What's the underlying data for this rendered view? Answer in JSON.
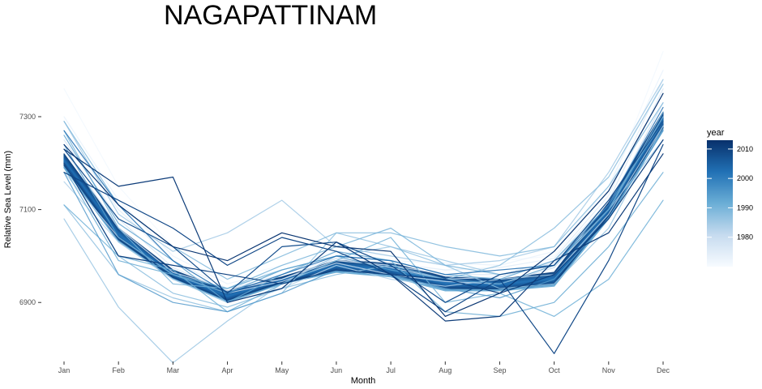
{
  "chart_data": {
    "type": "line",
    "title": "NAGAPATTINAM",
    "xlabel": "Month",
    "ylabel": "Relative Sea Level (mm)",
    "categories": [
      "Jan",
      "Feb",
      "Mar",
      "Apr",
      "May",
      "Jun",
      "Jul",
      "Aug",
      "Sep",
      "Oct",
      "Nov",
      "Dec"
    ],
    "ylim": [
      6780,
      7450
    ],
    "yticks": [
      6900,
      7100,
      7300
    ],
    "legend": {
      "title": "year",
      "position": "right",
      "range": [
        1970,
        2013
      ],
      "ticks": [
        1980,
        1990,
        2000,
        2010
      ],
      "color_low": "#f7fbff",
      "color_high": "#08306b"
    },
    "grid": false,
    "band": {
      "from": 1992,
      "to": 2010,
      "low": [
        7190,
        7030,
        6950,
        6900,
        6940,
        6965,
        6955,
        6925,
        6925,
        6935,
        7080,
        7270
      ],
      "high": [
        7220,
        7060,
        6970,
        6925,
        6955,
        6990,
        6985,
        6955,
        6950,
        6965,
        7115,
        7310
      ]
    },
    "series": [
      {
        "year": 1971,
        "values": [
          7360,
          7150,
          7020,
          6950,
          6980,
          7010,
          7000,
          6980,
          6990,
          7000,
          7140,
          7440
        ]
      },
      {
        "year": 1973,
        "values": [
          7300,
          7120,
          7000,
          6940,
          6970,
          7000,
          6990,
          6985,
          6980,
          7010,
          7150,
          7400
        ]
      },
      {
        "year": 1975,
        "values": [
          7270,
          7100,
          6990,
          6930,
          6960,
          6995,
          6985,
          6970,
          6975,
          6995,
          7130,
          7380
        ]
      },
      {
        "year": 1977,
        "values": [
          7250,
          7080,
          6975,
          6925,
          6950,
          6990,
          6980,
          6960,
          6960,
          6990,
          7120,
          7360
        ]
      },
      {
        "year": 1979,
        "values": [
          7230,
          7060,
          6965,
          6930,
          6950,
          6995,
          6975,
          6950,
          6955,
          6985,
          7110,
          7330
        ]
      },
      {
        "year": 1981,
        "values": [
          7180,
          7040,
          6960,
          6920,
          6945,
          6985,
          6960,
          6945,
          6940,
          6975,
          7100,
          7300
        ]
      },
      {
        "year": 1983,
        "values": [
          7160,
          7030,
          6950,
          6900,
          6930,
          6980,
          6950,
          6935,
          6950,
          6960,
          7090,
          7280
        ]
      },
      {
        "year": 1985,
        "values": [
          7290,
          7090,
          7010,
          7050,
          7120,
          7020,
          7000,
          6980,
          6990,
          7020,
          7180,
          7380
        ]
      },
      {
        "year": 1986,
        "values": [
          7080,
          6890,
          6770,
          6860,
          6940,
          7000,
          7020,
          6990,
          6960,
          6980,
          7100,
          7250
        ]
      },
      {
        "year": 1987,
        "values": [
          7110,
          6960,
          6910,
          6880,
          6920,
          7050,
          7020,
          6980,
          6930,
          6940,
          7060,
          7280
        ]
      },
      {
        "year": 1988,
        "values": [
          7200,
          7000,
          6920,
          6890,
          6930,
          6960,
          6980,
          6950,
          6980,
          7060,
          7170,
          7370
        ]
      },
      {
        "year": 1989,
        "values": [
          7290,
          7110,
          7020,
          6950,
          7000,
          7050,
          7050,
          7020,
          7000,
          7020,
          7150,
          7330
        ]
      },
      {
        "year": 1990,
        "values": [
          7270,
          7060,
          6940,
          6930,
          6980,
          7020,
          7060,
          6980,
          6960,
          6980,
          7100,
          7310
        ]
      },
      {
        "year": 1991,
        "values": [
          7110,
          7000,
          6970,
          6880,
          6940,
          6990,
          7040,
          6900,
          6920,
          6870,
          6950,
          7120
        ]
      },
      {
        "year": 1992,
        "values": [
          7190,
          6990,
          6960,
          6930,
          6970,
          7000,
          6990,
          6880,
          6870,
          6900,
          7020,
          7180
        ]
      },
      {
        "year": 1993,
        "values": [
          7260,
          7070,
          6990,
          6900,
          6960,
          7010,
          6990,
          6960,
          6950,
          6990,
          7110,
          7290
        ]
      },
      {
        "year": 1994,
        "values": [
          7240,
          7040,
          6960,
          6920,
          6970,
          7000,
          6970,
          6950,
          6940,
          6980,
          7100,
          7300
        ]
      },
      {
        "year": 1995,
        "values": [
          7180,
          6960,
          6900,
          6880,
          6920,
          6970,
          6960,
          6930,
          6910,
          6950,
          7080,
          7270
        ]
      },
      {
        "year": 2003,
        "values": [
          7270,
          7110,
          6990,
          6920,
          6960,
          7000,
          6990,
          6960,
          6970,
          6980,
          7110,
          7320
        ]
      },
      {
        "year": 2008,
        "values": [
          7230,
          7080,
          7020,
          6920,
          7020,
          7030,
          6980,
          6900,
          6960,
          6980,
          7120,
          7290
        ]
      },
      {
        "year": 2009,
        "values": [
          7180,
          7120,
          7060,
          6980,
          7040,
          7010,
          6960,
          6880,
          6950,
          6790,
          6990,
          7240
        ]
      },
      {
        "year": 2010,
        "values": [
          7200,
          7000,
          6980,
          6960,
          6940,
          6970,
          6960,
          6950,
          6920,
          6960,
          7080,
          7250
        ]
      },
      {
        "year": 2011,
        "values": [
          7230,
          7150,
          7170,
          6900,
          6930,
          7030,
          6960,
          6860,
          6870,
          6990,
          7050,
          7220
        ]
      },
      {
        "year": 2012,
        "values": [
          7240,
          7110,
          7020,
          6990,
          7050,
          7020,
          7010,
          6870,
          6920,
          7010,
          7140,
          7350
        ]
      }
    ]
  }
}
